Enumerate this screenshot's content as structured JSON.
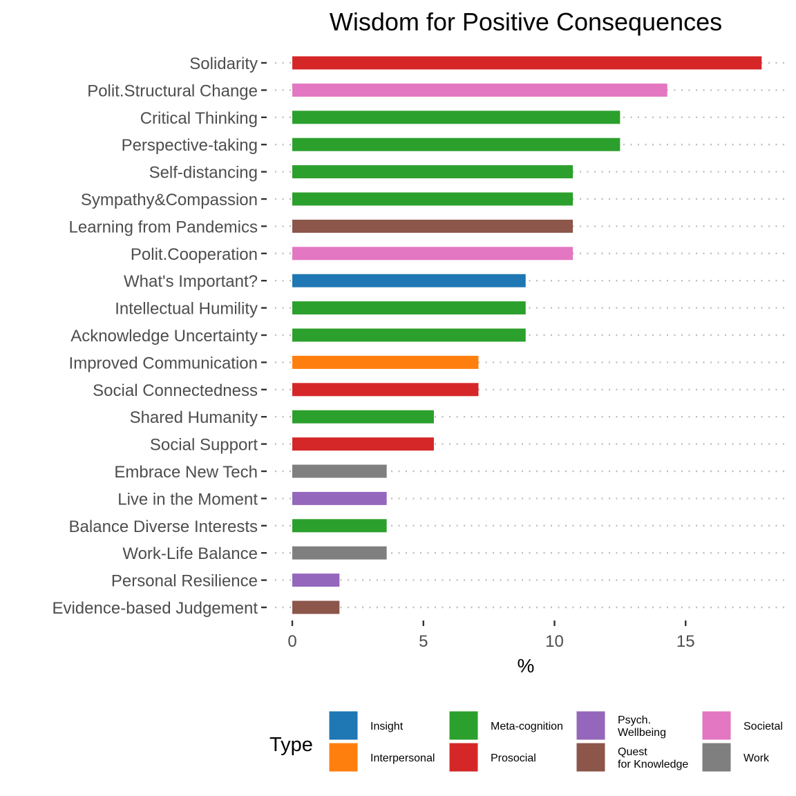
{
  "chart_data": {
    "type": "bar",
    "orientation": "horizontal",
    "title": "Wisdom for Positive Consequences",
    "xlabel": "%",
    "ylabel": "",
    "xlim": [
      0,
      18.5
    ],
    "xticks": [
      0,
      5,
      10,
      15
    ],
    "grid": "dotted horizontal lines at each category",
    "legend_position": "bottom",
    "legend_title": "Type",
    "categories": [
      "Solidarity",
      "Polit.Structural Change",
      "Critical Thinking",
      "Perspective-taking",
      "Self-distancing",
      "Sympathy&Compassion",
      "Learning from Pandemics",
      "Polit.Cooperation",
      "What's Important?",
      "Intellectual Humility",
      "Acknowledge Uncertainty",
      "Improved Communication",
      "Social Connectedness",
      "Shared Humanity",
      "Social Support",
      "Embrace New Tech",
      "Live in the Moment",
      "Balance Diverse Interests",
      "Work-Life Balance",
      "Personal Resilience",
      "Evidence-based Judgement"
    ],
    "values": [
      17.9,
      14.3,
      12.5,
      12.5,
      10.7,
      10.7,
      10.7,
      10.7,
      8.9,
      8.9,
      8.9,
      7.1,
      7.1,
      5.4,
      5.4,
      3.6,
      3.6,
      3.6,
      3.6,
      1.8,
      1.8
    ],
    "types": [
      "Prosocial",
      "Societal",
      "Meta-cognition",
      "Meta-cognition",
      "Meta-cognition",
      "Meta-cognition",
      "Quest for Knowledge",
      "Societal",
      "Insight",
      "Meta-cognition",
      "Meta-cognition",
      "Interpersonal",
      "Prosocial",
      "Meta-cognition",
      "Prosocial",
      "Work",
      "Psych. Wellbeing",
      "Meta-cognition",
      "Work",
      "Psych. Wellbeing",
      "Quest for Knowledge"
    ],
    "legend": [
      {
        "type": "Insight",
        "label_lines": [
          "Insight"
        ],
        "color": "#1f77b4"
      },
      {
        "type": "Interpersonal",
        "label_lines": [
          "Interpersonal"
        ],
        "color": "#ff7f0e"
      },
      {
        "type": "Meta-cognition",
        "label_lines": [
          "Meta-cognition"
        ],
        "color": "#2ca02c"
      },
      {
        "type": "Prosocial",
        "label_lines": [
          "Prosocial"
        ],
        "color": "#d62728"
      },
      {
        "type": "Psych. Wellbeing",
        "label_lines": [
          "Psych.",
          "Wellbeing"
        ],
        "color": "#9467bd"
      },
      {
        "type": "Quest for Knowledge",
        "label_lines": [
          "Quest",
          "for Knowledge"
        ],
        "color": "#8c564b"
      },
      {
        "type": "Societal",
        "label_lines": [
          "Societal"
        ],
        "color": "#e377c2"
      },
      {
        "type": "Work",
        "label_lines": [
          "Work"
        ],
        "color": "#7f7f7f"
      }
    ]
  }
}
